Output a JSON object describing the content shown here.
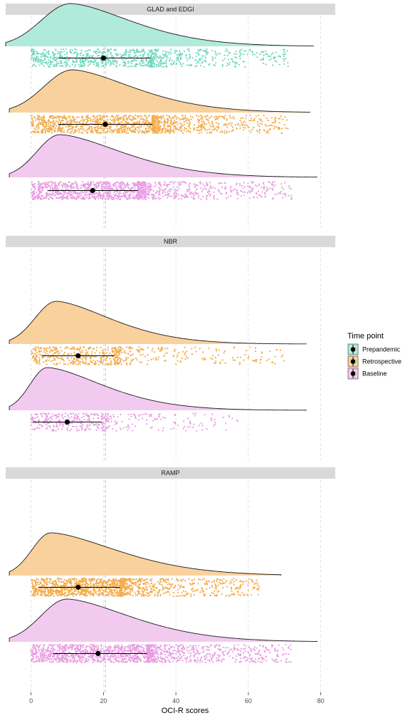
{
  "chart_data": {
    "type": "raincloud",
    "xlabel": "OCI-R scores",
    "xlim": [
      -7,
      84
    ],
    "x_ticks": [
      0,
      20,
      40,
      60,
      80
    ],
    "reference_line_x": 20.5,
    "grid": "vertical dashed",
    "legend": {
      "title": "Time point",
      "placement": "right",
      "entries": [
        {
          "label": "Prepandemic",
          "color": "#6fd8be"
        },
        {
          "label": "Retrospective",
          "color": "#f3ac4c"
        },
        {
          "label": "Baseline",
          "color": "#e89ee2"
        }
      ]
    },
    "panels": [
      {
        "name": "GLAD and EDGI",
        "series": [
          {
            "label": "Prepandemic",
            "mean": 20,
            "sd_low": 7.5,
            "sd_high": 33,
            "mode": 11,
            "range": [
              -7,
              78
            ],
            "max_score": 71,
            "skew": 1.8,
            "n": 900
          },
          {
            "label": "Retrospective",
            "mean": 20.5,
            "sd_low": 7.5,
            "sd_high": 33.5,
            "mode": 11.5,
            "range": [
              -6,
              77
            ],
            "max_score": 71,
            "skew": 1.8,
            "n": 1300
          },
          {
            "label": "Baseline",
            "mean": 17,
            "sd_low": 4.5,
            "sd_high": 29.5,
            "mode": 8,
            "range": [
              -6,
              79
            ],
            "max_score": 72,
            "skew": 1.9,
            "n": 1300
          }
        ]
      },
      {
        "name": "NBR",
        "series": [
          {
            "label": "Retrospective",
            "mean": 13,
            "sd_low": 3,
            "sd_high": 23,
            "mode": 7,
            "range": [
              -6,
              76
            ],
            "max_score": 70,
            "skew": 2.2,
            "n": 550
          },
          {
            "label": "Baseline",
            "mean": 10,
            "sd_low": 0.5,
            "sd_high": 19.5,
            "mode": 4.5,
            "range": [
              -6,
              76
            ],
            "max_score": 58,
            "skew": 2.4,
            "n": 400
          }
        ]
      },
      {
        "name": "RAMP",
        "series": [
          {
            "label": "Retrospective",
            "mean": 13,
            "sd_low": 2,
            "sd_high": 24.5,
            "mode": 5.5,
            "range": [
              -6,
              69
            ],
            "max_score": 63,
            "skew": 2.3,
            "n": 1300
          },
          {
            "label": "Baseline",
            "mean": 18.5,
            "sd_low": 6,
            "sd_high": 32,
            "mode": 10,
            "range": [
              -6,
              79
            ],
            "max_score": 72,
            "skew": 1.9,
            "n": 1500
          }
        ]
      }
    ]
  }
}
